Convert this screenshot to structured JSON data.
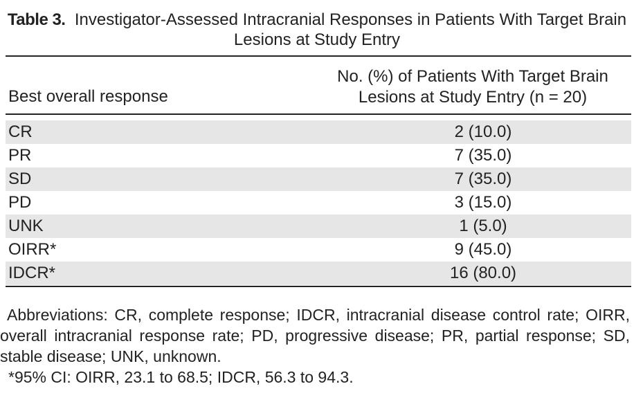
{
  "title": {
    "label": "Table 3.",
    "text": "Investigator-Assessed Intracranial Responses in Patients With Target Brain Lesions at Study Entry"
  },
  "table": {
    "header": [
      "Best overall response",
      "No. (%) of Patients With Target Brain Lesions at Study Entry (n = 20)"
    ],
    "rows": [
      [
        "CR",
        "2 (10.0)"
      ],
      [
        "PR",
        "7 (35.0)"
      ],
      [
        "SD",
        "7 (35.0)"
      ],
      [
        "PD",
        "3 (15.0)"
      ],
      [
        "UNK",
        "1 (5.0)"
      ],
      [
        "OIRR*",
        "9 (45.0)"
      ],
      [
        "IDCR*",
        "16 (80.0)"
      ]
    ]
  },
  "footnotes": [
    "Abbreviations: CR, complete response; IDCR, intracranial disease control rate; OIRR, overall intracranial response rate; PD, progressive disease; PR, partial response; SD, stable disease; UNK, unknown.",
    "*95% CI: OIRR, 23.1 to 68.5; IDCR, 56.3 to 94.3."
  ]
}
